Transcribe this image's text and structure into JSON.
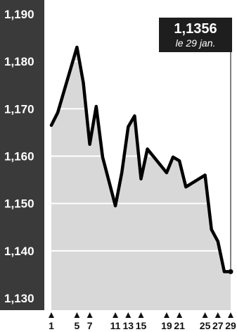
{
  "chart_data": {
    "type": "area",
    "y_ticks": [
      "1,190",
      "1,180",
      "1,170",
      "1,160",
      "1,150",
      "1,140",
      "1,130"
    ],
    "y_tick_values": [
      1.19,
      1.18,
      1.17,
      1.16,
      1.15,
      1.14,
      1.13
    ],
    "ylim": [
      1.128,
      1.192
    ],
    "x_ticks": [
      "1",
      "5",
      "7",
      "11",
      "13",
      "15",
      "19",
      "21",
      "25",
      "27",
      "29"
    ],
    "x": [
      1,
      2,
      5,
      6,
      7,
      8,
      9,
      11,
      12,
      13,
      14,
      15,
      16,
      19,
      20,
      21,
      22,
      25,
      26,
      27,
      28,
      29
    ],
    "values": [
      1.1665,
      1.1692,
      1.183,
      1.1755,
      1.1625,
      1.1705,
      1.1598,
      1.1495,
      1.1565,
      1.1662,
      1.1685,
      1.1552,
      1.1615,
      1.1565,
      1.1598,
      1.159,
      1.1535,
      1.156,
      1.1445,
      1.142,
      1.1356,
      1.1356
    ],
    "grid": true,
    "last_value": {
      "value": "1,1356",
      "date": "le 29 jan."
    }
  },
  "colors": {
    "axis_band": "#3a3a3a",
    "area_fill": "#d8d8d8",
    "line": "#000000",
    "callout_bg": "#1e1e1e"
  }
}
